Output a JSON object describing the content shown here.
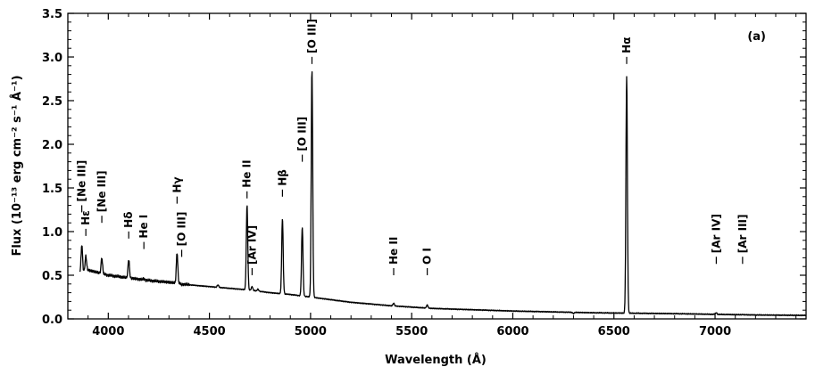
{
  "chart_data": {
    "type": "line",
    "panel_label": "(a)",
    "xlabel": "Wavelength (Å)",
    "ylabel": "Flux (10⁻¹³ erg cm⁻² s⁻¹ Å⁻¹)",
    "xlim": [
      3800,
      7450
    ],
    "ylim": [
      0.0,
      3.5
    ],
    "x_ticks": [
      4000,
      4500,
      5000,
      5500,
      6000,
      6500,
      7000
    ],
    "y_ticks": [
      0.0,
      0.5,
      1.0,
      1.5,
      2.0,
      2.5,
      3.0,
      3.5
    ],
    "x_tick_labels": [
      "4000",
      "4500",
      "5000",
      "5500",
      "6000",
      "6500",
      "7000"
    ],
    "y_tick_labels": [
      "0.0",
      "0.5",
      "1.0",
      "1.5",
      "2.0",
      "2.5",
      "3.0",
      "3.5"
    ],
    "grid": false,
    "series": [
      {
        "color": "#000000",
        "continuum": [
          [
            3860,
            0.53
          ],
          [
            3900,
            0.56
          ],
          [
            4000,
            0.5
          ],
          [
            4100,
            0.47
          ],
          [
            4200,
            0.44
          ],
          [
            4300,
            0.42
          ],
          [
            4400,
            0.39
          ],
          [
            4500,
            0.37
          ],
          [
            4600,
            0.35
          ],
          [
            4700,
            0.33
          ],
          [
            4800,
            0.3
          ],
          [
            4900,
            0.28
          ],
          [
            5000,
            0.25
          ],
          [
            5100,
            0.22
          ],
          [
            5200,
            0.19
          ],
          [
            5300,
            0.17
          ],
          [
            5400,
            0.15
          ],
          [
            5500,
            0.135
          ],
          [
            5600,
            0.12
          ],
          [
            5800,
            0.105
          ],
          [
            6000,
            0.09
          ],
          [
            6200,
            0.08
          ],
          [
            6400,
            0.07
          ],
          [
            6600,
            0.065
          ],
          [
            6800,
            0.06
          ],
          [
            7000,
            0.052
          ],
          [
            7200,
            0.045
          ],
          [
            7450,
            0.04
          ]
        ],
        "peaks": [
          {
            "x": 3869,
            "y": 0.85
          },
          {
            "x": 3889,
            "y": 0.72
          },
          {
            "x": 3968,
            "y": 0.7
          },
          {
            "x": 4101,
            "y": 0.68
          },
          {
            "x": 4176,
            "y": 0.46
          },
          {
            "x": 4340,
            "y": 0.76
          },
          {
            "x": 4363,
            "y": 0.39
          },
          {
            "x": 4542,
            "y": 0.39
          },
          {
            "x": 4686,
            "y": 1.3
          },
          {
            "x": 4711,
            "y": 0.37
          },
          {
            "x": 4740,
            "y": 0.34
          },
          {
            "x": 4861,
            "y": 1.15
          },
          {
            "x": 4959,
            "y": 1.05
          },
          {
            "x": 5007,
            "y": 2.86
          },
          {
            "x": 5411,
            "y": 0.18
          },
          {
            "x": 5577,
            "y": 0.16
          },
          {
            "x": 6300,
            "y": 0.06
          },
          {
            "x": 6437,
            "y": 0.07
          },
          {
            "x": 6563,
            "y": 2.78
          },
          {
            "x": 7006,
            "y": 0.07
          },
          {
            "x": 7136,
            "y": 0.05
          }
        ]
      }
    ],
    "line_labels": [
      {
        "text": "Hε",
        "x": 3889,
        "y": 0.95
      },
      {
        "text": "[Ne III]",
        "x": 3869,
        "y": 1.22
      },
      {
        "text": "[Ne III]",
        "x": 3968,
        "y": 1.1
      },
      {
        "text": "Hδ",
        "x": 4101,
        "y": 0.92
      },
      {
        "text": "He I",
        "x": 4176,
        "y": 0.8
      },
      {
        "text": "[O III]",
        "x": 4363,
        "y": 0.71
      },
      {
        "text": "Hγ",
        "x": 4340,
        "y": 1.32
      },
      {
        "text": "He II",
        "x": 4686,
        "y": 1.38
      },
      {
        "text": "[Ar IV]",
        "x": 4711,
        "y": 0.5
      },
      {
        "text": "Hβ",
        "x": 4861,
        "y": 1.4
      },
      {
        "text": "[O III]",
        "x": 4959,
        "y": 1.8
      },
      {
        "text": "[O III]",
        "x": 5007,
        "y": 2.92
      },
      {
        "text": "He II",
        "x": 5411,
        "y": 0.5
      },
      {
        "text": "O I",
        "x": 5577,
        "y": 0.5
      },
      {
        "text": "Hα",
        "x": 6563,
        "y": 2.92
      },
      {
        "text": "[Ar IV]",
        "x": 7006,
        "y": 0.63
      },
      {
        "text": "[Ar III]",
        "x": 7136,
        "y": 0.63
      }
    ]
  }
}
